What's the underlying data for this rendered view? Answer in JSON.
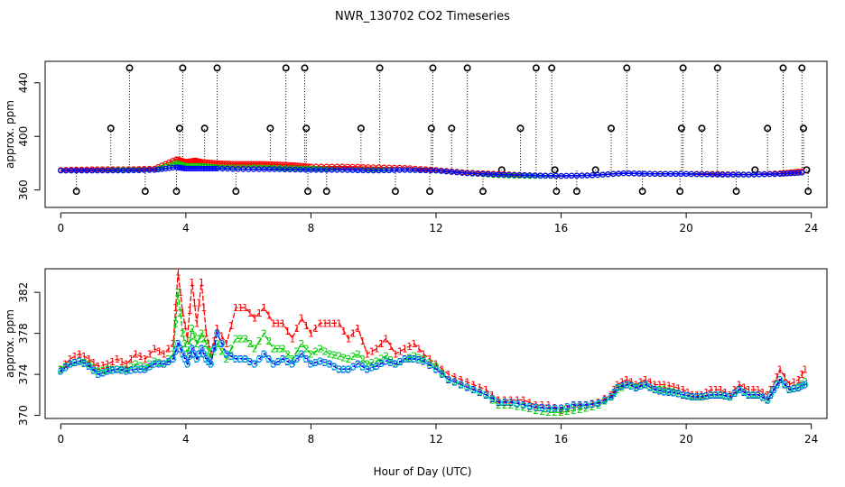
{
  "figure": {
    "title": "NWR_130702  CO2 Timeseries",
    "xlabel": "Hour of Day (UTC)"
  },
  "colors": {
    "series1": "#ff0000",
    "series2": "#00cc00",
    "series3": "#0000ff",
    "cyan": "#00cccc",
    "marker": "#000000"
  },
  "chart_data": [
    {
      "type": "scatter",
      "panel": "top",
      "title": "",
      "xlabel": "",
      "ylabel": "approx. ppm",
      "xlim": [
        -0.5,
        24.5
      ],
      "ylim": [
        347,
        456
      ],
      "x_ticks": [
        0,
        4,
        8,
        12,
        16,
        20,
        24
      ],
      "y_ticks": [
        360,
        400,
        440
      ],
      "grid": false,
      "legend": "none",
      "flag_markers": {
        "note": "black open circles with dotted drop lines (flagged / out-of-range values)",
        "points": [
          [
            0.5,
            359
          ],
          [
            1.6,
            406
          ],
          [
            2.2,
            451
          ],
          [
            2.7,
            359
          ],
          [
            3.7,
            359
          ],
          [
            3.8,
            406
          ],
          [
            3.9,
            451
          ],
          [
            4.6,
            406
          ],
          [
            5.0,
            451
          ],
          [
            5.6,
            359
          ],
          [
            6.7,
            406
          ],
          [
            7.2,
            451
          ],
          [
            7.8,
            451
          ],
          [
            7.85,
            406
          ],
          [
            7.9,
            359
          ],
          [
            8.5,
            359
          ],
          [
            9.6,
            406
          ],
          [
            10.2,
            451
          ],
          [
            10.7,
            359
          ],
          [
            11.8,
            359
          ],
          [
            11.85,
            406
          ],
          [
            11.9,
            451
          ],
          [
            12.5,
            406
          ],
          [
            13.0,
            451
          ],
          [
            13.5,
            359
          ],
          [
            14.1,
            375
          ],
          [
            14.7,
            406
          ],
          [
            15.2,
            451
          ],
          [
            15.7,
            451
          ],
          [
            15.8,
            375
          ],
          [
            15.85,
            359
          ],
          [
            16.5,
            359
          ],
          [
            17.1,
            375
          ],
          [
            17.6,
            406
          ],
          [
            18.1,
            451
          ],
          [
            18.6,
            359
          ],
          [
            19.8,
            359
          ],
          [
            19.9,
            451
          ],
          [
            19.85,
            406
          ],
          [
            20.5,
            406
          ],
          [
            21.0,
            451
          ],
          [
            21.6,
            359
          ],
          [
            22.2,
            375
          ],
          [
            22.6,
            406
          ],
          [
            23.1,
            451
          ],
          [
            23.7,
            451
          ],
          [
            23.75,
            406
          ],
          [
            23.85,
            375
          ],
          [
            23.9,
            359
          ]
        ]
      },
      "series": [
        {
          "name": "",
          "marker": "1",
          "color_key": "series1",
          "x": [
            0,
            1,
            2,
            3,
            3.7,
            4,
            4.3,
            4.5,
            5,
            5.5,
            6,
            6.5,
            7,
            7.5,
            8,
            9,
            10,
            11,
            12,
            13,
            14,
            15,
            16,
            17,
            18,
            19,
            20,
            21,
            22,
            23,
            23.7
          ],
          "y": [
            375,
            375.5,
            375.5,
            376,
            383,
            381,
            382,
            381,
            380,
            379.5,
            379.5,
            379.5,
            379,
            378.5,
            377.5,
            377.5,
            377,
            376.5,
            375,
            373,
            372,
            371,
            370.5,
            371,
            372.5,
            372,
            372,
            372,
            371.5,
            372.5,
            374
          ]
        },
        {
          "name": "",
          "marker": "2",
          "color_key": "series2",
          "x": [
            0,
            1,
            2,
            3,
            3.7,
            4,
            4.5,
            5,
            6,
            7,
            8,
            9,
            10,
            11,
            12,
            13,
            14,
            15,
            16,
            17,
            18,
            19,
            20,
            21,
            22,
            23,
            23.7
          ],
          "y": [
            374.5,
            374.5,
            375,
            375,
            380,
            378,
            378,
            377,
            377,
            376.5,
            376,
            375,
            375,
            375,
            374.5,
            372.5,
            371,
            370.5,
            370.5,
            371,
            372.5,
            372,
            372,
            371.5,
            371.5,
            372,
            373
          ]
        },
        {
          "name": "",
          "marker": "3",
          "color_key": "series3",
          "x": [
            0,
            1,
            2,
            3,
            3.7,
            4,
            4.5,
            5,
            6,
            7,
            8,
            9,
            10,
            11,
            12,
            13,
            14,
            15,
            16,
            17,
            18,
            19,
            20,
            21,
            22,
            23,
            23.7
          ],
          "y": [
            374.5,
            374.5,
            374.5,
            375,
            377,
            376,
            376,
            376,
            375.5,
            375.5,
            375,
            375,
            374.5,
            375,
            374.5,
            372.5,
            371.5,
            371,
            370.5,
            371,
            372.5,
            372,
            372,
            371.5,
            371.5,
            372,
            373
          ]
        }
      ]
    },
    {
      "type": "line",
      "panel": "bottom",
      "title": "",
      "xlabel": "Hour of Day (UTC)",
      "ylabel": "approx. ppm",
      "xlim": [
        -0.5,
        24.5
      ],
      "ylim": [
        369.7,
        384.3
      ],
      "x_ticks": [
        0,
        4,
        8,
        12,
        16,
        20,
        24
      ],
      "y_ticks": [
        370,
        374,
        378,
        382
      ],
      "grid": false,
      "legend": "none",
      "series": [
        {
          "name": "",
          "marker": "1",
          "color_key": "series1",
          "x": [
            0,
            0.3,
            0.6,
            0.9,
            1.2,
            1.5,
            1.8,
            2.1,
            2.4,
            2.7,
            3.0,
            3.3,
            3.6,
            3.75,
            3.9,
            4.05,
            4.2,
            4.35,
            4.5,
            4.65,
            4.8,
            5.0,
            5.3,
            5.6,
            5.9,
            6.2,
            6.5,
            6.8,
            7.1,
            7.4,
            7.7,
            8.0,
            8.3,
            8.6,
            8.9,
            9.2,
            9.5,
            9.8,
            10.1,
            10.4,
            10.7,
            11.0,
            11.3,
            11.6,
            12.0,
            12.4,
            12.8,
            13.2,
            13.6,
            14.0,
            14.4,
            14.8,
            15.2,
            15.6,
            16.0,
            16.4,
            16.8,
            17.2,
            17.6,
            17.8,
            18.1,
            18.4,
            18.7,
            19.0,
            19.3,
            19.6,
            19.9,
            20.2,
            20.5,
            20.8,
            21.1,
            21.4,
            21.7,
            22.0,
            22.3,
            22.6,
            22.8,
            23.0,
            23.3,
            23.6,
            23.8
          ],
          "y": [
            374.5,
            375.5,
            376,
            375.5,
            374.8,
            375,
            375.5,
            375,
            376,
            375.5,
            376.5,
            376,
            377,
            384,
            380,
            377.5,
            383,
            379,
            383,
            378,
            376,
            378.5,
            377,
            380.5,
            380.5,
            379.5,
            380.5,
            379,
            379,
            377.5,
            379.5,
            378,
            379,
            379,
            379,
            377.5,
            378.5,
            376,
            376.5,
            377.5,
            376,
            376.5,
            377,
            376,
            375,
            374,
            373.5,
            373,
            372.5,
            371.5,
            371.5,
            371.5,
            371,
            371,
            370.5,
            370.8,
            371,
            371.3,
            372,
            373,
            373.5,
            373,
            373.5,
            373,
            373,
            372.8,
            372.5,
            372,
            372,
            372.5,
            372.5,
            372,
            373,
            372.5,
            372.5,
            372,
            373,
            374.5,
            373,
            373.5,
            374.5
          ]
        },
        {
          "name": "",
          "marker": "2",
          "color_key": "series2",
          "x": [
            0,
            0.3,
            0.6,
            0.9,
            1.2,
            1.5,
            1.8,
            2.1,
            2.4,
            2.7,
            3.0,
            3.3,
            3.6,
            3.75,
            3.9,
            4.05,
            4.2,
            4.35,
            4.5,
            4.65,
            4.8,
            5.0,
            5.3,
            5.6,
            5.9,
            6.2,
            6.5,
            6.8,
            7.1,
            7.4,
            7.7,
            8.0,
            8.3,
            8.6,
            8.9,
            9.2,
            9.5,
            9.8,
            10.1,
            10.4,
            10.7,
            11.0,
            11.3,
            11.6,
            12.0,
            12.4,
            12.8,
            13.2,
            13.6,
            14.0,
            14.4,
            14.8,
            15.2,
            15.6,
            16.0,
            16.4,
            16.8,
            17.2,
            17.6,
            17.8,
            18.1,
            18.4,
            18.7,
            19.0,
            19.3,
            19.6,
            19.9,
            20.2,
            20.5,
            20.8,
            21.1,
            21.4,
            21.7,
            22.0,
            22.3,
            22.6,
            22.8,
            23.0,
            23.3,
            23.6,
            23.8
          ],
          "y": [
            374.5,
            375,
            375.3,
            375,
            374.3,
            374.5,
            374.5,
            374.5,
            375,
            374.7,
            375.3,
            375,
            376,
            382,
            378,
            376,
            378.5,
            377,
            378,
            377,
            375.5,
            377,
            375.5,
            377.5,
            377.5,
            376.5,
            378,
            376.5,
            376.5,
            375.5,
            377,
            376,
            376.5,
            376,
            375.8,
            375.5,
            376,
            375,
            375.3,
            375.8,
            375,
            375.5,
            375.8,
            375.5,
            374.8,
            373.5,
            373,
            372.5,
            372,
            371,
            371,
            370.8,
            370.5,
            370.3,
            370.3,
            370.5,
            370.7,
            371,
            371.8,
            372.5,
            373,
            372.8,
            373,
            372.5,
            372.5,
            372.3,
            372,
            371.8,
            371.8,
            372,
            372,
            371.8,
            372.5,
            372,
            372,
            371.5,
            372.5,
            373.5,
            372.5,
            372.8,
            373.3
          ]
        },
        {
          "name": "",
          "marker": "3",
          "color_key": "series3",
          "x": [
            0,
            0.3,
            0.6,
            0.9,
            1.2,
            1.5,
            1.8,
            2.1,
            2.4,
            2.7,
            3.0,
            3.3,
            3.6,
            3.75,
            3.9,
            4.05,
            4.2,
            4.35,
            4.5,
            4.65,
            4.8,
            5.0,
            5.3,
            5.6,
            5.9,
            6.2,
            6.5,
            6.8,
            7.1,
            7.4,
            7.7,
            8.0,
            8.3,
            8.6,
            8.9,
            9.2,
            9.5,
            9.8,
            10.1,
            10.4,
            10.7,
            11.0,
            11.3,
            11.6,
            12.0,
            12.4,
            12.8,
            13.2,
            13.6,
            14.0,
            14.4,
            14.8,
            15.2,
            15.6,
            16.0,
            16.4,
            16.8,
            17.2,
            17.6,
            17.8,
            18.1,
            18.4,
            18.7,
            19.0,
            19.3,
            19.6,
            19.9,
            20.2,
            20.5,
            20.8,
            21.1,
            21.4,
            21.7,
            22.0,
            22.3,
            22.6,
            22.8,
            23.0,
            23.3,
            23.6,
            23.8
          ],
          "y": [
            374.3,
            375,
            375.3,
            374.8,
            374,
            374.3,
            374.5,
            374.3,
            374.5,
            374.5,
            375,
            375,
            375.5,
            377,
            376,
            375,
            376.5,
            375.5,
            376.5,
            375.5,
            375,
            378,
            376,
            375.5,
            375.5,
            375,
            376,
            375,
            375.5,
            375,
            376,
            375,
            375.3,
            375,
            374.5,
            374.5,
            375,
            374.5,
            374.8,
            375.3,
            375,
            375.5,
            375.5,
            375.3,
            374.5,
            373.5,
            373,
            372.5,
            372,
            371.3,
            371.3,
            371,
            370.8,
            370.7,
            370.7,
            371,
            371,
            371.2,
            371.8,
            372.7,
            373,
            372.7,
            373,
            372.5,
            372.3,
            372.2,
            372,
            371.8,
            371.8,
            372,
            372,
            371.8,
            372.5,
            372,
            372,
            371.5,
            372.5,
            373.5,
            372.5,
            372.7,
            373
          ]
        }
      ]
    }
  ]
}
